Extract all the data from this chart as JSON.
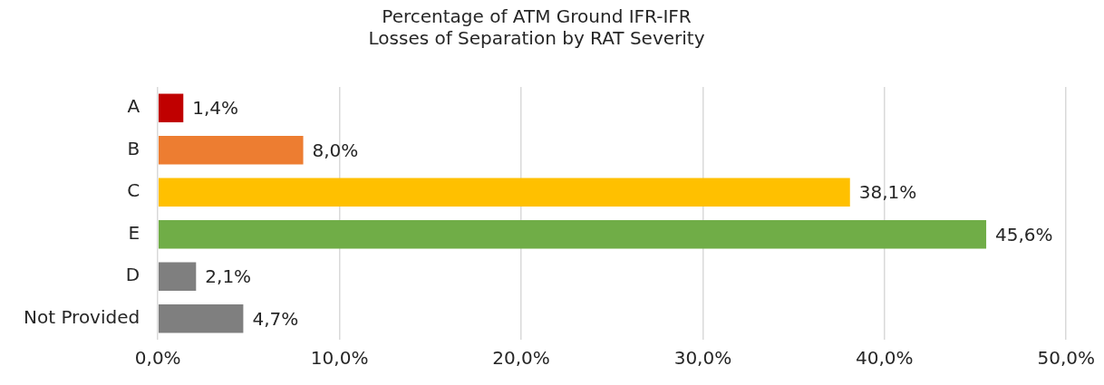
{
  "chart_data": {
    "type": "bar",
    "orientation": "horizontal",
    "title": "Percentage of ATM Ground IFR-IFR\nLosses of Separation by RAT Severity",
    "categories": [
      "A",
      "B",
      "C",
      "E",
      "D",
      "Not Provided"
    ],
    "values": [
      1.4,
      8.0,
      38.1,
      45.6,
      2.1,
      4.7
    ],
    "colors": [
      "#c00000",
      "#ed7d31",
      "#ffc000",
      "#70ad47",
      "#7f7f7f",
      "#7f7f7f"
    ],
    "value_labels": [
      "1,4%",
      "8,0%",
      "38,1%",
      "45,6%",
      "2,1%",
      "4,7%"
    ],
    "xlim": [
      0,
      50
    ],
    "xticks": [
      {
        "value": 0,
        "label": "0,0%"
      },
      {
        "value": 10,
        "label": "10,0%"
      },
      {
        "value": 20,
        "label": "20,0%"
      },
      {
        "value": 30,
        "label": "30,0%"
      },
      {
        "value": 40,
        "label": "40,0%"
      },
      {
        "value": 50,
        "label": "50,0%"
      }
    ],
    "grid": "x",
    "legend": false
  }
}
